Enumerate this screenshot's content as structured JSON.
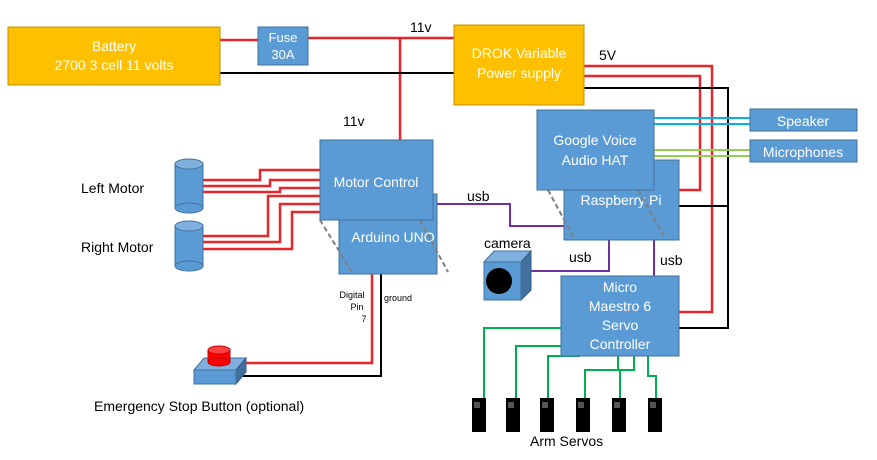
{
  "components": {
    "battery": {
      "line1": "Battery",
      "line2": "2700 3 cell 11 volts"
    },
    "fuse": {
      "line1": "Fuse",
      "line2": "30A"
    },
    "drok": {
      "line1": "DROK Variable",
      "line2": "Power supply"
    },
    "motor_control": {
      "label": "Motor Control"
    },
    "arduino": {
      "label": "Arduino UNO"
    },
    "google_hat": {
      "line1": "Google Voice",
      "line2": "Audio HAT"
    },
    "raspberry_pi": {
      "label": "Raspberry Pi"
    },
    "speaker": {
      "label": "Speaker"
    },
    "microphones": {
      "label": "Microphones"
    },
    "maestro": {
      "line1": "Micro",
      "line2": "Maestro 6",
      "line3": "Servo",
      "line4": "Controller"
    }
  },
  "labels": {
    "v11_top": "11v",
    "v11_mid": "11v",
    "v5": "5V",
    "left_motor": "Left Motor",
    "right_motor": "Right Motor",
    "usb_arduino": "usb",
    "usb_camera": "usb",
    "usb_maestro": "usb",
    "camera": "camera",
    "digital_pin_1": "Digital",
    "digital_pin_2": "Pin",
    "digital_pin_3": "7",
    "ground": "ground",
    "estop": "Emergency Stop Button (optional)",
    "arm_servos": "Arm Servos"
  },
  "colors": {
    "battery": "#FFC000",
    "board": "#5B9BD5",
    "board_border": "#41719C",
    "power_wire": "#E8262A",
    "ground_wire": "#000000",
    "usb_wire": "#7030A0",
    "servo_wire": "#00B050",
    "speaker_wire": "#00B0F0",
    "mic_wire": "#92D050",
    "estop_red": "#FF0000"
  }
}
